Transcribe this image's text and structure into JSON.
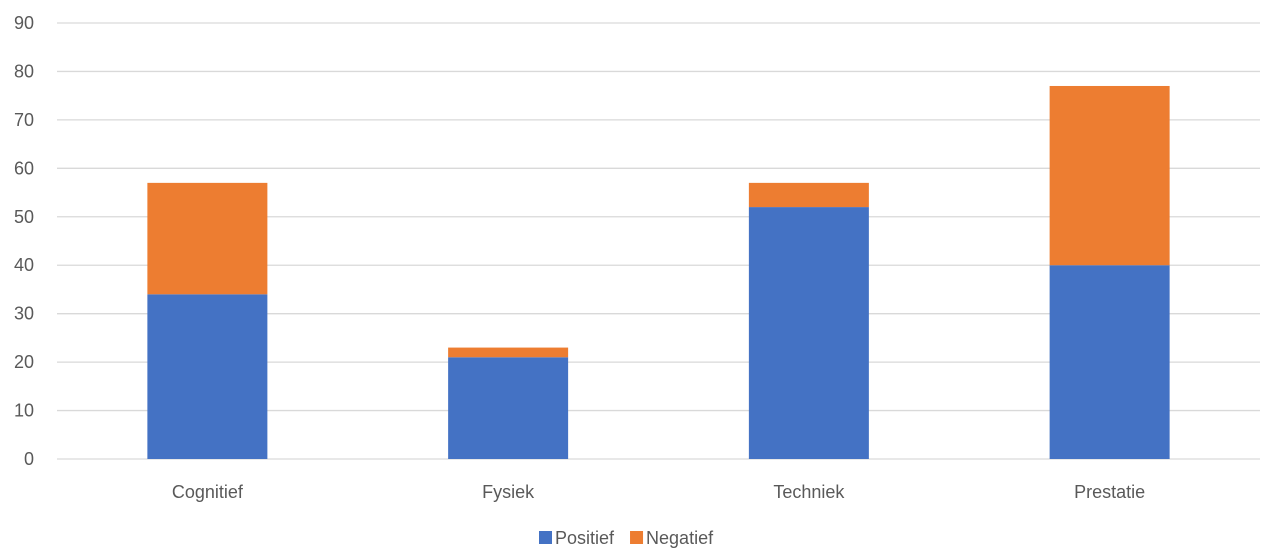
{
  "chart_data": {
    "type": "bar",
    "stacked": true,
    "title": "",
    "xlabel": "",
    "ylabel": "",
    "categories": [
      "Cognitief",
      "Fysiek",
      "Techniek",
      "Prestatie"
    ],
    "series": [
      {
        "name": "Positief",
        "values": [
          34,
          21,
          52,
          40
        ],
        "color": "#4472C4"
      },
      {
        "name": "Negatief",
        "values": [
          23,
          2,
          5,
          37
        ],
        "color": "#ED7D31"
      }
    ],
    "ylim": [
      0,
      90
    ],
    "yticks": [
      0,
      10,
      20,
      30,
      40,
      50,
      60,
      70,
      80,
      90
    ],
    "grid": true,
    "legend": "bottom-center"
  }
}
